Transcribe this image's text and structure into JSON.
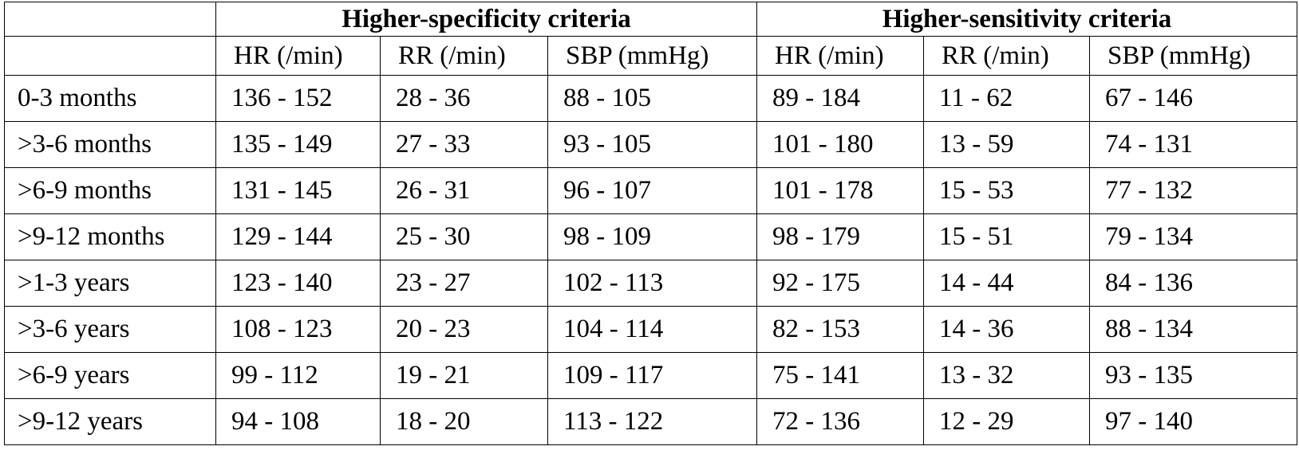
{
  "table": {
    "groups": [
      "Higher-specificity criteria",
      "Higher-sensitivity criteria"
    ],
    "columns": [
      "HR (/min)",
      "RR (/min)",
      "SBP (mmHg)",
      "HR (/min)",
      "RR (/min)",
      "SBP (mmHg)"
    ],
    "rows": [
      [
        "0-3 months",
        "136 - 152",
        "28 - 36",
        "88 - 105",
        "89 - 184",
        "11 - 62",
        "67 - 146"
      ],
      [
        ">3-6 months",
        "135 - 149",
        "27 - 33",
        "93 - 105",
        "101 - 180",
        "13 - 59",
        "74 - 131"
      ],
      [
        ">6-9 months",
        "131 - 145",
        "26 - 31",
        "96 - 107",
        "101 - 178",
        "15 - 53",
        "77 - 132"
      ],
      [
        ">9-12 months",
        "129 - 144",
        "25 - 30",
        "98 - 109",
        "98 - 179",
        "15 - 51",
        "79 - 134"
      ],
      [
        ">1-3 years",
        "123 - 140",
        "23 - 27",
        "102 - 113",
        "92 - 175",
        "14 - 44",
        "84 - 136"
      ],
      [
        ">3-6 years",
        "108 - 123",
        "20 - 23",
        "104 - 114",
        "82 - 153",
        "14 - 36",
        "88 - 134"
      ],
      [
        ">6-9 years",
        "99 - 112",
        "19 - 21",
        "109 - 117",
        "75 - 141",
        "13 - 32",
        "93 - 135"
      ],
      [
        ">9-12 years",
        "94 - 108",
        "18 - 20",
        "113 - 122",
        "72 - 136",
        "12 - 29",
        "97 - 140"
      ]
    ]
  }
}
